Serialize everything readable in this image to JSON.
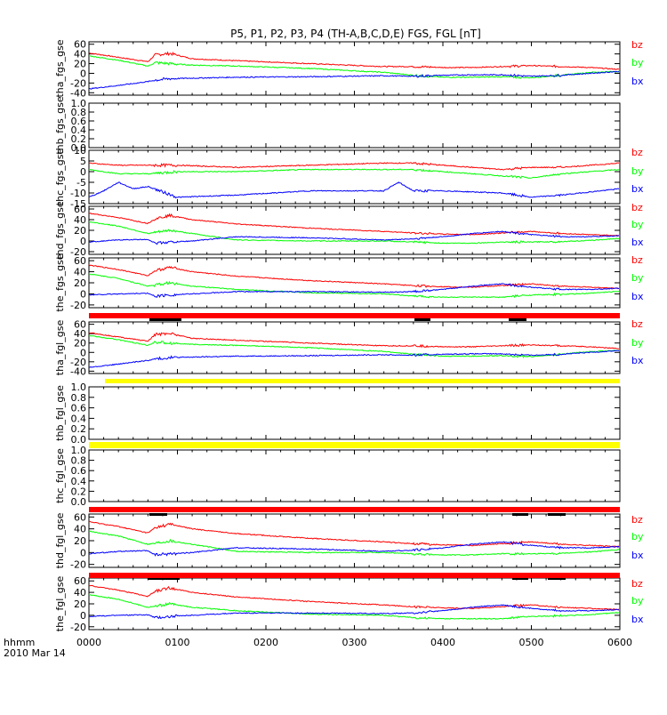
{
  "title": "P5, P1, P2, P3, P4 (TH-A,B,C,D,E) FGS, FGL [nT]",
  "footer": {
    "label_line1": "hhmm",
    "label_line2": "2010 Mar 14"
  },
  "colors": {
    "bz": "#ff0000",
    "by": "#00ff00",
    "bx": "#0000ff",
    "bar_red": "#ff0000",
    "bar_yellow": "#ffff00",
    "bar_black": "#000000"
  },
  "chart_data": {
    "type": "line",
    "x_axis": {
      "ticks": [
        "0000",
        "0100",
        "0200",
        "0300",
        "0400",
        "0500",
        "0600"
      ],
      "range": [
        0,
        360
      ]
    },
    "panels": [
      {
        "ylabel": "tha_fgs_gse",
        "yticks": [
          "-40",
          "-20",
          "0",
          "20",
          "40",
          "60"
        ],
        "ytick_values": [
          -40,
          -20,
          0,
          20,
          40,
          60
        ],
        "ylim": [
          -45,
          65
        ],
        "legend": [
          "bz",
          "by",
          "bx"
        ],
        "series": [
          {
            "name": "bz",
            "x": [
              0,
              20,
              40,
              45,
              55,
              70,
              100,
              150,
              200,
              220,
              240,
              260,
              280,
              300,
              320,
              340,
              360
            ],
            "y": [
              42,
              33,
              24,
              38,
              41,
              30,
              26,
              20,
              14,
              14,
              12,
              12,
              14,
              16,
              14,
              12,
              8
            ]
          },
          {
            "name": "by",
            "x": [
              0,
              20,
              40,
              45,
              55,
              70,
              100,
              150,
              200,
              220,
              240,
              260,
              280,
              300,
              320,
              340,
              360
            ],
            "y": [
              36,
              27,
              15,
              22,
              20,
              17,
              15,
              10,
              2,
              -4,
              -8,
              -8,
              -7,
              -9,
              -4,
              2,
              4
            ]
          },
          {
            "name": "bx",
            "x": [
              0,
              20,
              40,
              45,
              55,
              70,
              100,
              150,
              200,
              220,
              240,
              260,
              280,
              300,
              320,
              340,
              360
            ],
            "y": [
              -32,
              -25,
              -17,
              -14,
              -11,
              -10,
              -8,
              -7,
              -5,
              -6,
              -4,
              -3,
              -3,
              -6,
              -4,
              0,
              4
            ]
          }
        ]
      },
      {
        "ylabel": "thb_fgs_gse",
        "yticks": [
          "0.0",
          "0.2",
          "0.4",
          "0.6",
          "0.8",
          "1.0"
        ],
        "ytick_values": [
          0,
          0.2,
          0.4,
          0.6,
          0.8,
          1.0
        ],
        "ylim": [
          0,
          1
        ],
        "legend": [],
        "series": []
      },
      {
        "ylabel": "thc_fgs_gse",
        "yticks": [
          "-15",
          "-10",
          "-5",
          "0",
          "5",
          "10"
        ],
        "ytick_values": [
          -15,
          -10,
          -5,
          0,
          5,
          10
        ],
        "ylim": [
          -15,
          10
        ],
        "legend": [
          "bz",
          "by",
          "bx"
        ],
        "series": [
          {
            "name": "bz",
            "x": [
              0,
              20,
              40,
              60,
              100,
              150,
              200,
              220,
              240,
              280,
              300,
              320,
              360
            ],
            "y": [
              4,
              3,
              3,
              3,
              2,
              3,
              4,
              4,
              3,
              1,
              2,
              2,
              4
            ]
          },
          {
            "name": "by",
            "x": [
              0,
              20,
              40,
              60,
              100,
              150,
              200,
              220,
              240,
              280,
              300,
              320,
              360
            ],
            "y": [
              1,
              -1,
              -1,
              0,
              0,
              1,
              1,
              1,
              0,
              -2,
              -3,
              -1,
              1
            ]
          },
          {
            "name": "bx",
            "x": [
              0,
              10,
              20,
              30,
              40,
              60,
              100,
              150,
              200,
              210,
              220,
              240,
              280,
              300,
              320,
              360
            ],
            "y": [
              -12,
              -9,
              -5,
              -8,
              -7,
              -12,
              -11,
              -9,
              -9,
              -5,
              -9,
              -9,
              -10,
              -12,
              -11,
              -8
            ]
          }
        ]
      },
      {
        "ylabel": "thd_fgs_gse",
        "yticks": [
          "-20",
          "0",
          "20",
          "40",
          "60"
        ],
        "ytick_values": [
          -20,
          0,
          20,
          40,
          60
        ],
        "ylim": [
          -25,
          65
        ],
        "legend": [
          "bz",
          "by",
          "bx"
        ],
        "series": [
          {
            "name": "bz",
            "x": [
              0,
              20,
              40,
              45,
              55,
              70,
              100,
              150,
              200,
              220,
              240,
              260,
              280,
              300,
              320,
              340,
              360
            ],
            "y": [
              52,
              44,
              33,
              42,
              48,
              40,
              32,
              24,
              18,
              15,
              13,
              12,
              15,
              18,
              14,
              12,
              10
            ]
          },
          {
            "name": "by",
            "x": [
              0,
              20,
              40,
              45,
              55,
              70,
              100,
              150,
              200,
              220,
              240,
              260,
              280,
              300,
              320,
              340,
              360
            ],
            "y": [
              36,
              28,
              14,
              16,
              20,
              14,
              2,
              0,
              0,
              -2,
              -4,
              -4,
              -2,
              -2,
              -1,
              1,
              5
            ]
          },
          {
            "name": "bx",
            "x": [
              0,
              20,
              40,
              45,
              55,
              70,
              100,
              150,
              200,
              220,
              240,
              260,
              280,
              300,
              320,
              340,
              360
            ],
            "y": [
              -2,
              2,
              3,
              -4,
              -2,
              0,
              8,
              6,
              2,
              4,
              8,
              14,
              18,
              12,
              8,
              8,
              10
            ]
          }
        ]
      },
      {
        "ylabel": "the_fgs_gse",
        "yticks": [
          "-20",
          "0",
          "20",
          "40",
          "60"
        ],
        "ytick_values": [
          -20,
          0,
          20,
          40,
          60
        ],
        "ylim": [
          -25,
          65
        ],
        "legend": [
          "bz",
          "by",
          "bx"
        ],
        "series": [
          {
            "name": "bz",
            "x": [
              0,
              20,
              40,
              45,
              55,
              70,
              100,
              150,
              200,
              220,
              240,
              260,
              280,
              300,
              320,
              340,
              360
            ],
            "y": [
              52,
              44,
              33,
              42,
              48,
              40,
              32,
              24,
              18,
              15,
              13,
              12,
              15,
              18,
              14,
              12,
              10
            ]
          },
          {
            "name": "by",
            "x": [
              0,
              20,
              40,
              45,
              55,
              70,
              100,
              150,
              200,
              220,
              240,
              260,
              280,
              300,
              320,
              340,
              360
            ],
            "y": [
              36,
              28,
              14,
              16,
              20,
              14,
              8,
              2,
              0,
              -4,
              -6,
              -6,
              -6,
              -2,
              -1,
              1,
              5
            ]
          },
          {
            "name": "bx",
            "x": [
              0,
              20,
              40,
              45,
              55,
              70,
              100,
              150,
              200,
              220,
              240,
              260,
              280,
              300,
              320,
              340,
              360
            ],
            "y": [
              -2,
              0,
              1,
              -4,
              -2,
              0,
              4,
              4,
              3,
              4,
              8,
              14,
              18,
              12,
              8,
              8,
              10
            ]
          }
        ]
      },
      {
        "ylabel": "tha_fgl_gse",
        "yticks": [
          "-40",
          "-20",
          "0",
          "20",
          "40",
          "60"
        ],
        "ytick_values": [
          -40,
          -20,
          0,
          20,
          40,
          60
        ],
        "ylim": [
          -45,
          65
        ],
        "legend": [
          "bz",
          "by",
          "bx"
        ],
        "series": [
          {
            "name": "bz",
            "x": [
              0,
              20,
              40,
              45,
              55,
              70,
              100,
              150,
              200,
              220,
              240,
              260,
              280,
              300,
              320,
              340,
              360
            ],
            "y": [
              42,
              33,
              24,
              38,
              41,
              30,
              26,
              20,
              14,
              14,
              12,
              12,
              14,
              16,
              14,
              12,
              8
            ]
          },
          {
            "name": "by",
            "x": [
              0,
              20,
              40,
              45,
              55,
              70,
              100,
              150,
              200,
              220,
              240,
              260,
              280,
              300,
              320,
              340,
              360
            ],
            "y": [
              36,
              27,
              15,
              22,
              20,
              17,
              15,
              10,
              2,
              -4,
              -8,
              -8,
              -7,
              -9,
              -4,
              2,
              4
            ]
          },
          {
            "name": "bx",
            "x": [
              0,
              20,
              40,
              45,
              55,
              70,
              100,
              150,
              200,
              220,
              240,
              260,
              280,
              300,
              320,
              340,
              360
            ],
            "y": [
              -32,
              -25,
              -17,
              -14,
              -11,
              -10,
              -8,
              -7,
              -5,
              -6,
              -4,
              -3,
              -3,
              -6,
              -4,
              0,
              4
            ]
          }
        ]
      },
      {
        "ylabel": "thb_fgl_gse",
        "yticks": [
          "0.0",
          "0.2",
          "0.4",
          "0.6",
          "0.8",
          "1.0"
        ],
        "ytick_values": [
          0,
          0.2,
          0.4,
          0.6,
          0.8,
          1.0
        ],
        "ylim": [
          0,
          1
        ],
        "legend": [],
        "series": []
      },
      {
        "ylabel": "thc_fgl_gse",
        "yticks": [
          "0.0",
          "0.2",
          "0.4",
          "0.6",
          "0.8",
          "1.0"
        ],
        "ytick_values": [
          0,
          0.2,
          0.4,
          0.6,
          0.8,
          1.0
        ],
        "ylim": [
          0,
          1
        ],
        "legend": [],
        "series": []
      },
      {
        "ylabel": "thd_fgl_gse",
        "yticks": [
          "-20",
          "0",
          "20",
          "40",
          "60"
        ],
        "ytick_values": [
          -20,
          0,
          20,
          40,
          60
        ],
        "ylim": [
          -25,
          65
        ],
        "legend": [
          "bz",
          "by",
          "bx"
        ],
        "series": [
          {
            "name": "bz",
            "x": [
              0,
              20,
              40,
              45,
              55,
              70,
              100,
              150,
              200,
              220,
              240,
              260,
              280,
              300,
              320,
              340,
              360
            ],
            "y": [
              52,
              44,
              33,
              42,
              48,
              40,
              32,
              24,
              18,
              15,
              13,
              12,
              15,
              18,
              14,
              12,
              10
            ]
          },
          {
            "name": "by",
            "x": [
              0,
              20,
              40,
              45,
              55,
              70,
              100,
              150,
              200,
              220,
              240,
              260,
              280,
              300,
              320,
              340,
              360
            ],
            "y": [
              36,
              28,
              14,
              16,
              20,
              14,
              2,
              0,
              0,
              -2,
              -4,
              -4,
              -2,
              -2,
              -1,
              1,
              5
            ]
          },
          {
            "name": "bx",
            "x": [
              0,
              20,
              40,
              45,
              55,
              70,
              100,
              150,
              200,
              220,
              240,
              260,
              280,
              300,
              320,
              340,
              360
            ],
            "y": [
              -2,
              2,
              3,
              -4,
              -2,
              0,
              8,
              6,
              2,
              4,
              8,
              14,
              18,
              12,
              8,
              8,
              10
            ]
          }
        ]
      },
      {
        "ylabel": "the_fgl_gse",
        "yticks": [
          "-20",
          "0",
          "20",
          "40",
          "60"
        ],
        "ytick_values": [
          -20,
          0,
          20,
          40,
          60
        ],
        "ylim": [
          -25,
          65
        ],
        "legend": [
          "bz",
          "by",
          "bx"
        ],
        "series": [
          {
            "name": "bz",
            "x": [
              0,
              20,
              40,
              45,
              55,
              70,
              100,
              150,
              200,
              220,
              240,
              260,
              280,
              300,
              320,
              340,
              360
            ],
            "y": [
              52,
              44,
              33,
              42,
              48,
              40,
              32,
              24,
              18,
              15,
              13,
              12,
              15,
              18,
              14,
              12,
              10
            ]
          },
          {
            "name": "by",
            "x": [
              0,
              20,
              40,
              45,
              55,
              70,
              100,
              150,
              200,
              220,
              240,
              260,
              280,
              300,
              320,
              340,
              360
            ],
            "y": [
              36,
              28,
              14,
              16,
              20,
              14,
              8,
              2,
              0,
              -4,
              -6,
              -6,
              -6,
              -2,
              -1,
              1,
              5
            ]
          },
          {
            "name": "bx",
            "x": [
              0,
              20,
              40,
              45,
              55,
              70,
              100,
              150,
              200,
              220,
              240,
              260,
              280,
              300,
              320,
              340,
              360
            ],
            "y": [
              -2,
              0,
              1,
              -4,
              -2,
              0,
              4,
              4,
              3,
              4,
              8,
              14,
              18,
              12,
              8,
              8,
              10
            ]
          }
        ]
      }
    ]
  }
}
